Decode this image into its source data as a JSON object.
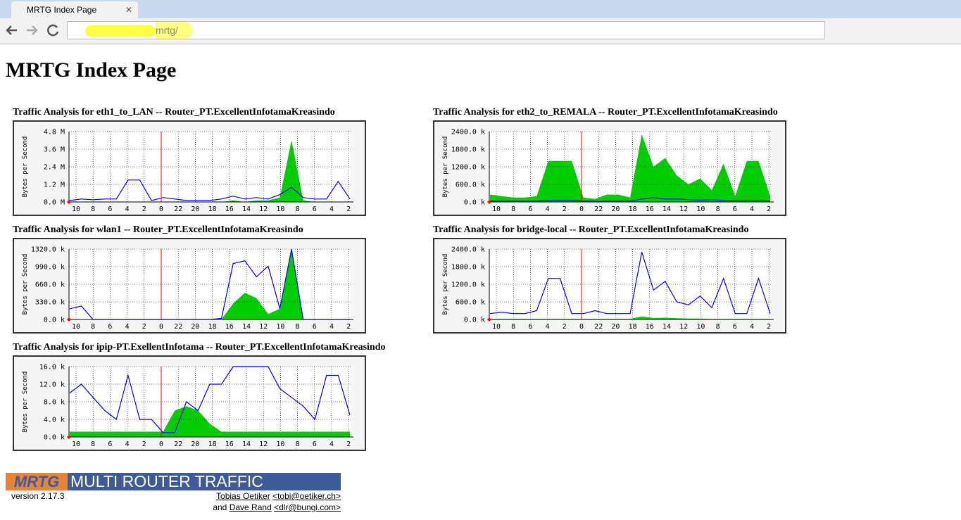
{
  "browser": {
    "tab_title": "MRTG Index Page",
    "address": "mrtg/"
  },
  "page": {
    "title": "MRTG Index Page"
  },
  "chart_data": [
    {
      "type": "line",
      "title": "Traffic Analysis for eth1_to_LAN -- Router_PT.ExcellentInfotamaKreasindo",
      "y_label": "Bytes per Second",
      "x_labels": [
        "10",
        "8",
        "6",
        "4",
        "2",
        "0",
        "22",
        "20",
        "18",
        "16",
        "14",
        "12",
        "10",
        "8",
        "6",
        "4",
        "2"
      ],
      "ylim": [
        0,
        4.8
      ],
      "yticks": [
        {
          "value": 0,
          "label": "0.0 M"
        },
        {
          "value": 1.2,
          "label": "1.2 M"
        },
        {
          "value": 2.4,
          "label": "2.4 M"
        },
        {
          "value": 3.6,
          "label": "3.6 M"
        },
        {
          "value": 4.8,
          "label": "4.8 M"
        }
      ],
      "series": [
        {
          "color": "#00cc00",
          "fill": true,
          "values": [
            0,
            0,
            0,
            0,
            0,
            0,
            0,
            0,
            0,
            0,
            0,
            0,
            0,
            0,
            0.1,
            0,
            0.1,
            0.1,
            0.3,
            4.2,
            0.1,
            0,
            0,
            0,
            0
          ]
        },
        {
          "color": "#0000ff",
          "fill": false,
          "values": [
            0.1,
            0.2,
            0.15,
            0.2,
            0.2,
            1.5,
            1.5,
            0.1,
            0.3,
            0.2,
            0.1,
            0.1,
            0.1,
            0.2,
            0.4,
            0.2,
            0.3,
            0.2,
            0.5,
            1.0,
            0.3,
            0.2,
            0.2,
            1.4,
            0.2
          ]
        }
      ]
    },
    {
      "type": "line",
      "title": "Traffic Analysis for eth2_to_REMALA -- Router_PT.ExcellentInfotamaKreasindo",
      "y_label": "Bytes per Second",
      "x_labels": [
        "10",
        "8",
        "6",
        "4",
        "2",
        "0",
        "22",
        "20",
        "18",
        "16",
        "14",
        "12",
        "10",
        "8",
        "6",
        "4",
        "2"
      ],
      "ylim": [
        0,
        2400
      ],
      "yticks": [
        {
          "value": 0,
          "label": "0.0 k"
        },
        {
          "value": 600,
          "label": "600.0 k"
        },
        {
          "value": 1200,
          "label": "1200.0 k"
        },
        {
          "value": 1800,
          "label": "1800.0 k"
        },
        {
          "value": 2400,
          "label": "2400.0 k"
        }
      ],
      "series": [
        {
          "color": "#00cc00",
          "fill": true,
          "values": [
            250,
            200,
            150,
            150,
            200,
            1400,
            1400,
            1400,
            150,
            100,
            250,
            250,
            150,
            2300,
            1200,
            1500,
            900,
            600,
            800,
            400,
            1300,
            200,
            1400,
            1400,
            200
          ]
        },
        {
          "color": "#0000ff",
          "fill": false,
          "values": [
            30,
            30,
            30,
            30,
            30,
            50,
            50,
            50,
            30,
            20,
            30,
            30,
            30,
            100,
            150,
            100,
            100,
            80,
            60,
            80,
            50,
            40,
            40,
            40,
            30
          ]
        }
      ]
    },
    {
      "type": "line",
      "title": "Traffic Analysis for wlan1 -- Router_PT.ExcellentInfotamaKreasindo",
      "y_label": "Bytes per Second",
      "x_labels": [
        "10",
        "8",
        "6",
        "4",
        "2",
        "0",
        "22",
        "20",
        "18",
        "16",
        "14",
        "12",
        "10",
        "8",
        "6",
        "4",
        "2"
      ],
      "ylim": [
        0,
        1320
      ],
      "yticks": [
        {
          "value": 0,
          "label": "0.0 k"
        },
        {
          "value": 330,
          "label": "330.0 k"
        },
        {
          "value": 660,
          "label": "660.0 k"
        },
        {
          "value": 990,
          "label": "990.0 k"
        },
        {
          "value": 1320,
          "label": "1320.0 k"
        }
      ],
      "series": [
        {
          "color": "#00cc00",
          "fill": true,
          "values": [
            0,
            0,
            0,
            0,
            0,
            0,
            0,
            0,
            0,
            0,
            0,
            0,
            0,
            0,
            300,
            500,
            400,
            100,
            200,
            1320,
            0,
            0,
            0,
            0,
            0
          ]
        },
        {
          "color": "#0000ff",
          "fill": false,
          "values": [
            200,
            250,
            0,
            0,
            0,
            0,
            0,
            0,
            0,
            0,
            0,
            0,
            0,
            20,
            1050,
            1100,
            800,
            1000,
            200,
            1320,
            0,
            0,
            0,
            0,
            0
          ]
        }
      ]
    },
    {
      "type": "line",
      "title": "Traffic Analysis for bridge-local -- Router_PT.ExcellentInfotamaKreasindo",
      "y_label": "Bytes per Second",
      "x_labels": [
        "10",
        "8",
        "6",
        "4",
        "2",
        "0",
        "22",
        "20",
        "18",
        "16",
        "14",
        "12",
        "10",
        "8",
        "6",
        "4",
        "2"
      ],
      "ylim": [
        0,
        2400
      ],
      "yticks": [
        {
          "value": 0,
          "label": "0.0 k"
        },
        {
          "value": 600,
          "label": "600.0 k"
        },
        {
          "value": 1200,
          "label": "1200.0 k"
        },
        {
          "value": 1800,
          "label": "1800.0 k"
        },
        {
          "value": 2400,
          "label": "2400.0 k"
        }
      ],
      "series": [
        {
          "color": "#00cc00",
          "fill": true,
          "values": [
            20,
            20,
            20,
            20,
            20,
            20,
            20,
            20,
            20,
            20,
            20,
            20,
            20,
            100,
            50,
            60,
            40,
            30,
            30,
            20,
            20,
            20,
            20,
            20,
            20
          ]
        },
        {
          "color": "#0000ff",
          "fill": false,
          "values": [
            200,
            250,
            200,
            200,
            300,
            1400,
            1400,
            200,
            200,
            300,
            200,
            200,
            200,
            2300,
            1000,
            1300,
            600,
            500,
            800,
            400,
            1400,
            200,
            200,
            1400,
            200
          ]
        }
      ]
    },
    {
      "type": "line",
      "title": "Traffic Analysis for ipip-PT.ExellentInfotama -- Router_PT.ExcellentInfotamaKreasindo",
      "y_label": "Bytes per Second",
      "x_labels": [
        "10",
        "8",
        "6",
        "4",
        "2",
        "0",
        "22",
        "20",
        "18",
        "16",
        "14",
        "12",
        "10",
        "8",
        "6",
        "4",
        "2"
      ],
      "ylim": [
        0,
        16
      ],
      "yticks": [
        {
          "value": 0,
          "label": "0.0 k"
        },
        {
          "value": 4,
          "label": "4.0 k"
        },
        {
          "value": 8,
          "label": "8.0 k"
        },
        {
          "value": 12,
          "label": "12.0 k"
        },
        {
          "value": 16,
          "label": "16.0 k"
        }
      ],
      "series": [
        {
          "color": "#00cc00",
          "fill": true,
          "values": [
            1.2,
            1.2,
            1.2,
            1.2,
            1.2,
            1.2,
            1.2,
            1.2,
            1.2,
            6,
            7,
            6,
            3,
            1.2,
            1.2,
            1.2,
            1.2,
            1.2,
            1.2,
            1.2,
            1.2,
            1.2,
            1.2,
            1.2,
            1.2
          ]
        },
        {
          "color": "#0000ff",
          "fill": false,
          "values": [
            10,
            12,
            9,
            6,
            4,
            14,
            4,
            4,
            1,
            1,
            8,
            6,
            12,
            12,
            16,
            16,
            16,
            16,
            11,
            9,
            7,
            4,
            14,
            14,
            5
          ]
        }
      ]
    }
  ],
  "footer": {
    "logo_short": "MRTG",
    "logo_text": "MULTI ROUTER TRAFFIC GRAPHER",
    "version": "version 2.17.3",
    "author1": "Tobias Oetiker",
    "email1": "<tobi@oetiker.ch>",
    "and": "and",
    "author2": "Dave Rand",
    "email2": "<dlr@bungi.com>"
  }
}
